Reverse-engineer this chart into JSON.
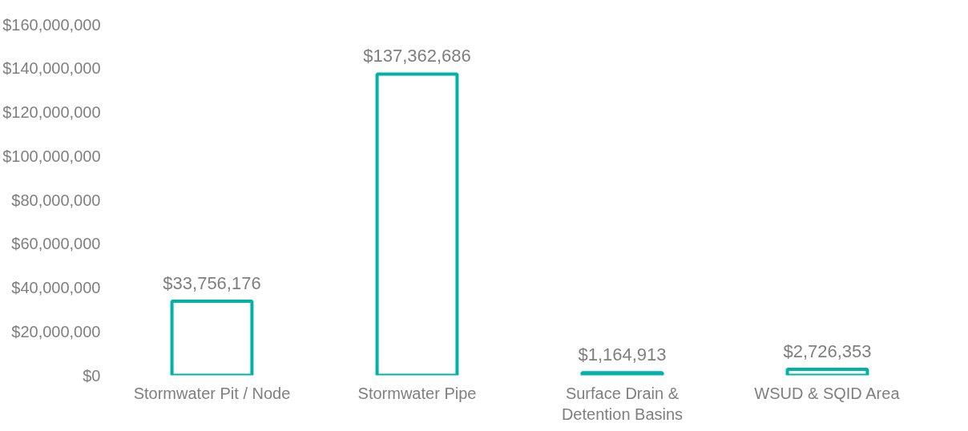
{
  "chart_data": {
    "type": "bar",
    "categories": [
      "Stormwater Pit / Node",
      "Stormwater Pipe",
      "Surface Drain & Detention Basins",
      "WSUD & SQID Area"
    ],
    "values": [
      33756176,
      137362686,
      1164913,
      2726353
    ],
    "value_labels": [
      "$33,756,176",
      "$137,362,686",
      "$1,164,913",
      "$2,726,353"
    ],
    "color": "#00b2aa",
    "ylim": [
      0,
      160000000
    ],
    "yticks": [
      {
        "value": 0,
        "label": "$0"
      },
      {
        "value": 20000000,
        "label": "$20,000,000"
      },
      {
        "value": 40000000,
        "label": "$40,000,000"
      },
      {
        "value": 60000000,
        "label": "$60,000,000"
      },
      {
        "value": 80000000,
        "label": "$80,000,000"
      },
      {
        "value": 100000000,
        "label": "$100,000,000"
      },
      {
        "value": 120000000,
        "label": "$120,000,000"
      },
      {
        "value": 140000000,
        "label": "$140,000,000"
      },
      {
        "value": 160000000,
        "label": "$160,000,000"
      }
    ],
    "grid": false
  }
}
